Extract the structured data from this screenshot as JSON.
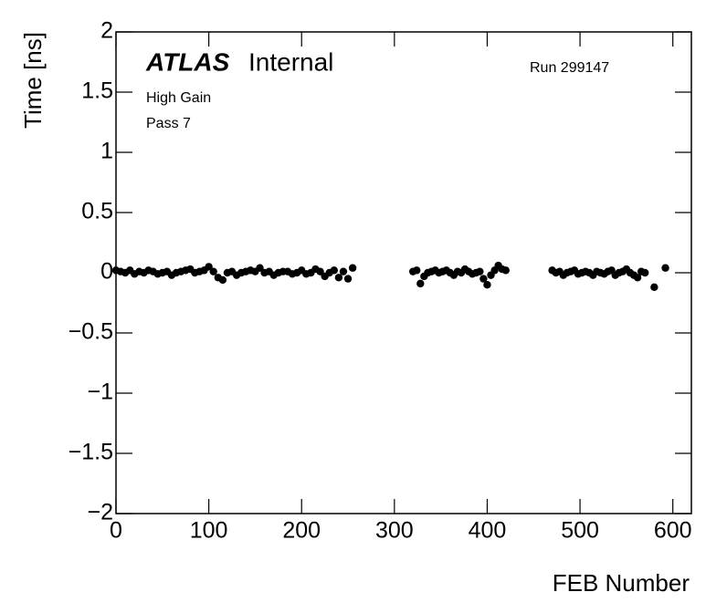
{
  "chart_data": {
    "type": "scatter",
    "brand": "ATLAS",
    "label": "Internal",
    "run": "Run 299147",
    "notes": [
      "High Gain",
      "Pass 7"
    ],
    "xlabel": "FEB Number",
    "ylabel": "Time [ns]",
    "color": "#000000",
    "xlim": [
      0,
      620
    ],
    "ylim": [
      -2,
      2
    ],
    "xticks": [
      0,
      100,
      200,
      300,
      400,
      500,
      600
    ],
    "yticks": [
      {
        "value": -2,
        "label": "−2"
      },
      {
        "value": -1.5,
        "label": "−1.5"
      },
      {
        "value": -1,
        "label": "−1"
      },
      {
        "value": -0.5,
        "label": "−0.5"
      },
      0,
      0.5,
      1,
      1.5,
      2
    ],
    "x": [
      0,
      5,
      10,
      15,
      20,
      25,
      30,
      35,
      40,
      45,
      50,
      55,
      60,
      65,
      70,
      75,
      80,
      85,
      90,
      95,
      100,
      105,
      110,
      115,
      120,
      125,
      130,
      135,
      140,
      145,
      150,
      155,
      160,
      165,
      170,
      175,
      180,
      185,
      190,
      195,
      200,
      205,
      210,
      215,
      220,
      225,
      230,
      235,
      240,
      245,
      250,
      255,
      320,
      324,
      328,
      332,
      336,
      340,
      344,
      348,
      352,
      356,
      360,
      364,
      368,
      372,
      376,
      380,
      384,
      388,
      392,
      396,
      400,
      404,
      408,
      412,
      416,
      420,
      470,
      474,
      478,
      482,
      486,
      490,
      494,
      498,
      502,
      506,
      510,
      514,
      518,
      522,
      526,
      530,
      534,
      538,
      542,
      546,
      550,
      554,
      558,
      562,
      566,
      570,
      580,
      592
    ],
    "values": [
      0.02,
      0.01,
      0.0,
      0.02,
      -0.01,
      0.01,
      0.0,
      0.02,
      0.01,
      -0.01,
      0.0,
      0.01,
      -0.02,
      0.0,
      0.01,
      0.02,
      0.03,
      0.0,
      0.01,
      0.02,
      0.05,
      0.01,
      -0.04,
      -0.06,
      0.0,
      0.01,
      -0.02,
      0.0,
      0.01,
      0.02,
      0.01,
      0.04,
      0.0,
      0.01,
      -0.02,
      0.0,
      0.01,
      0.01,
      -0.01,
      0.0,
      0.02,
      -0.01,
      0.0,
      0.03,
      0.01,
      -0.03,
      0.0,
      0.02,
      -0.04,
      0.01,
      -0.05,
      0.04,
      0.01,
      0.02,
      -0.09,
      -0.03,
      0.0,
      0.01,
      0.02,
      0.0,
      0.01,
      0.02,
      0.0,
      -0.02,
      0.01,
      0.0,
      0.03,
      0.01,
      -0.01,
      0.0,
      0.01,
      -0.05,
      -0.1,
      -0.02,
      0.02,
      0.06,
      0.03,
      0.02,
      0.02,
      0.0,
      0.01,
      -0.02,
      0.0,
      0.01,
      0.02,
      -0.01,
      0.0,
      0.01,
      0.0,
      -0.02,
      0.01,
      0.0,
      -0.01,
      0.01,
      0.02,
      -0.02,
      0.0,
      0.01,
      0.03,
      0.0,
      -0.02,
      -0.04,
      0.01,
      0.0,
      -0.12,
      0.04
    ]
  }
}
